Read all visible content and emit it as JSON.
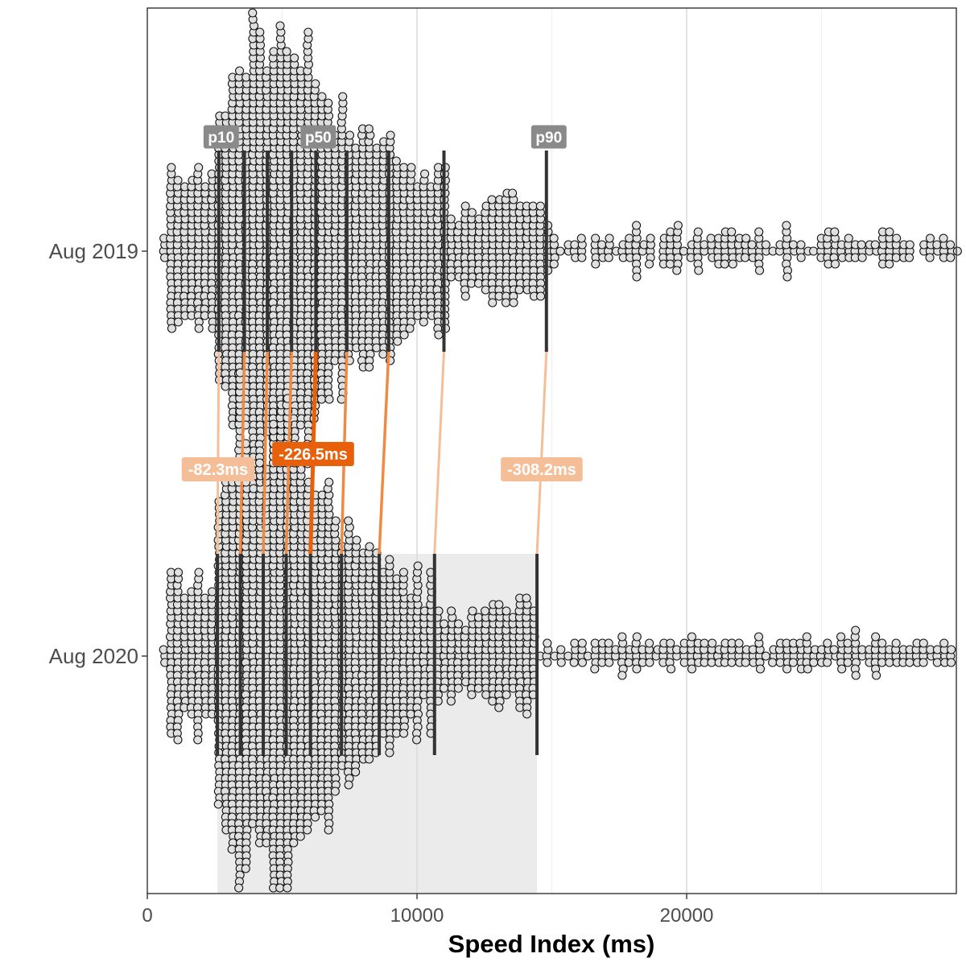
{
  "chart_data": {
    "type": "scatter",
    "subtype": "beeswarm",
    "xlabel": "Speed Index (ms)",
    "x_ticks": [
      0,
      10000,
      20000
    ],
    "x_tick_labels": [
      "0",
      "10000",
      "20000"
    ],
    "xlim": [
      0,
      30000
    ],
    "grid": "vertical major and minor",
    "categories": [
      "Aug 2019",
      "Aug 2020"
    ],
    "deciles": [
      "p10",
      "p20",
      "p30",
      "p40",
      "p50",
      "p60",
      "p70",
      "p80",
      "p90"
    ],
    "series": [
      {
        "name": "Aug 2019",
        "decile_values": [
          2650,
          3600,
          4450,
          5350,
          6250,
          7400,
          8950,
          11000,
          14800
        ],
        "max_value": 30000
      },
      {
        "name": "Aug 2020",
        "decile_values": [
          2600,
          3450,
          4300,
          5150,
          6050,
          7200,
          8600,
          10650,
          14450
        ],
        "max_value": 30000
      }
    ],
    "shaded_range": {
      "from": 2600,
      "to": 14450
    },
    "decile_labels": [
      {
        "text": "p10",
        "decile": 0
      },
      {
        "text": "p50",
        "decile": 4
      },
      {
        "text": "p90",
        "decile": 8
      }
    ],
    "difference_labels": [
      {
        "text": "-82.3ms",
        "decile": 0,
        "emphasis": "low"
      },
      {
        "text": "-226.5ms",
        "decile": 4,
        "emphasis": "high"
      },
      {
        "text": "-308.2ms",
        "decile": 8,
        "emphasis": "low"
      }
    ],
    "colors": {
      "points_fill": "#e0e0e0",
      "points_stroke": "#111111",
      "decile_line": "#333333",
      "label_gray": "#8a8a8a",
      "diff_high": "#e8600a",
      "diff_mid": "#ee8a42",
      "diff_low": "#f4bf98",
      "shade": "#ebebeb",
      "grid": "#ebebeb"
    }
  }
}
